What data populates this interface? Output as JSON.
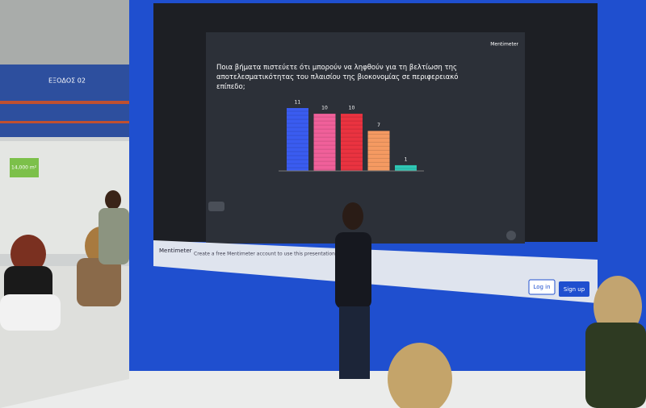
{
  "chart_data": {
    "type": "bar",
    "title": "Ποια βήματα πιστεύετε ότι μπορούν να ληφθούν για τη βελτίωση της αποτελεσματικότητας του πλαισίου της βιοκονομίας σε περιφερειακό επίπεδο;",
    "categories": [
      null,
      null,
      null,
      null,
      null
    ],
    "values": [
      11,
      10,
      10,
      7,
      1
    ],
    "colors": [
      "#3a5cf0",
      "#f0609a",
      "#ea3340",
      "#f59a62",
      "#2fc7b5"
    ]
  },
  "screen": {
    "brand": "Mentimeter",
    "footer_brand": "Mentimeter",
    "footer_text": "Create a free Mentimeter account to use this presentation",
    "login": "Log in",
    "signup": "Sign up"
  },
  "venue": {
    "sign": "ΕΞΟΔΟΣ 02",
    "booth": "14,000 m²"
  }
}
